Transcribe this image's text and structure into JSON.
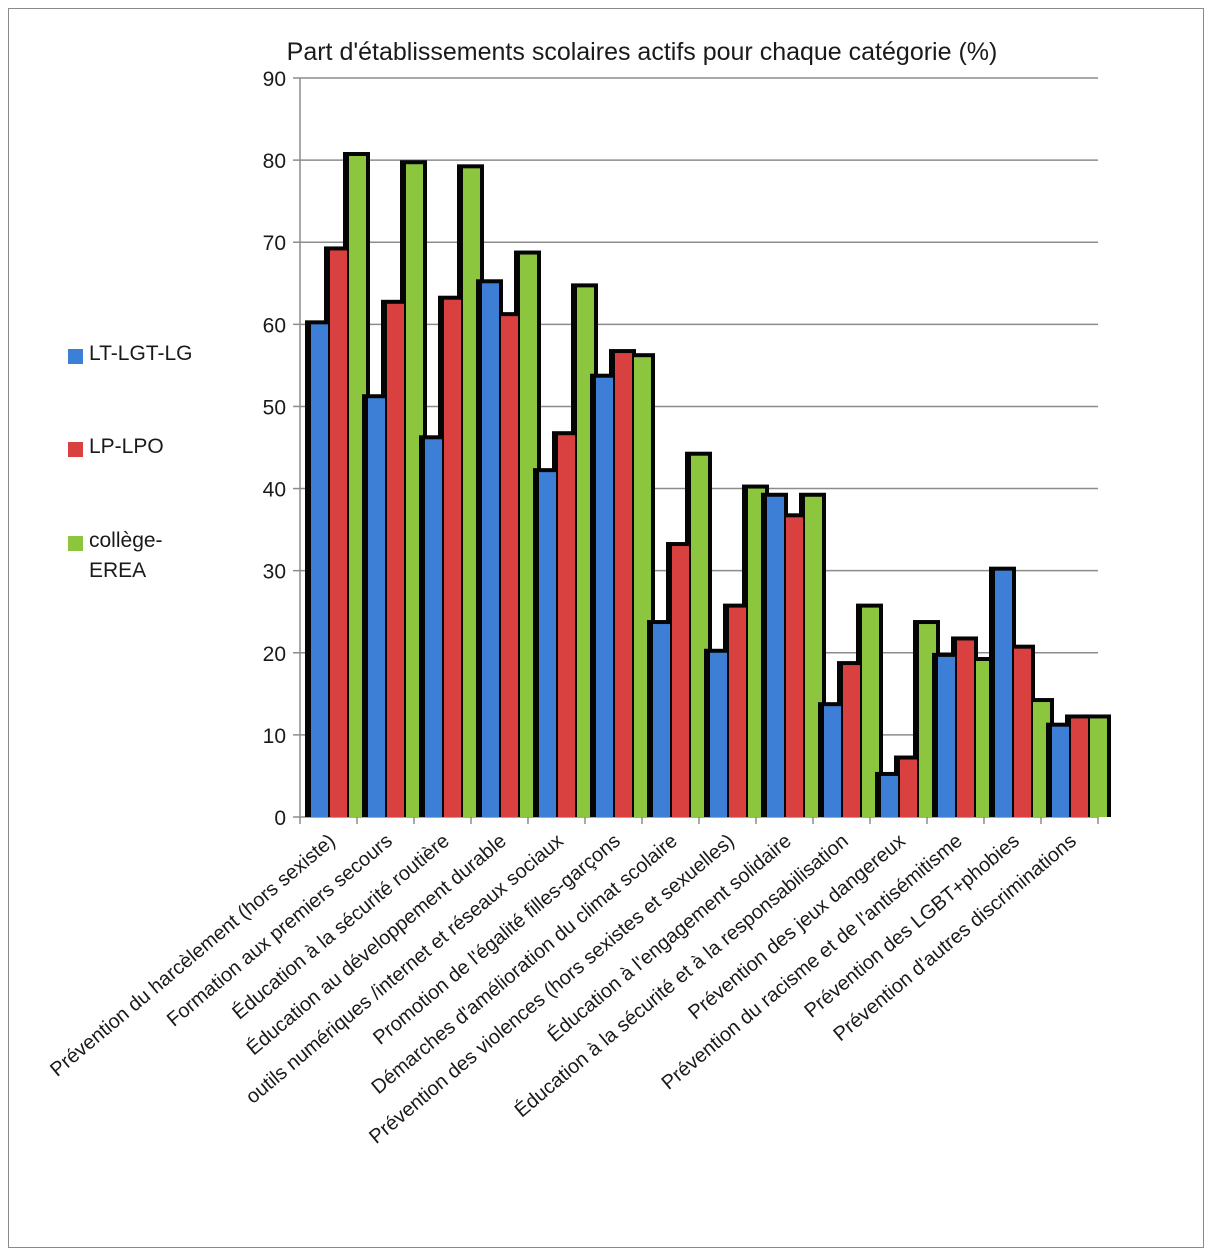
{
  "chart_data": {
    "type": "bar",
    "title": "Part d'établissements scolaires actifs pour chaque catégorie  (%)",
    "xlabel": "",
    "ylabel": "",
    "ylim": [
      0,
      90
    ],
    "yticks": [
      0,
      10,
      20,
      30,
      40,
      50,
      60,
      70,
      80,
      90
    ],
    "grid": true,
    "legend_position": "left",
    "categories": [
      "Prévention du harcèlement (hors sexiste)",
      "Formation aux premiers secours",
      "Éducation à la sécurité routière",
      "Éducation au développement durable",
      "outils numériques /internet et réseaux sociaux",
      "Promotion de l'égalité filles-garçons",
      "Démarches d'amélioration du climat scolaire",
      "Prévention des violences (hors sexistes et sexuelles)",
      "Éducation à l'engagement solidaire",
      "Éducation à la sécurité et à la responsabilisation",
      "Prévention des jeux dangereux",
      "Prévention du racisme et de l'antisémitisme",
      "Prévention des LGBT+phobies",
      "Prévention d'autres discriminations"
    ],
    "series": [
      {
        "name": "LT-LGT-LG",
        "color": "#3d7fd6",
        "values": [
          60,
          51,
          46,
          65,
          42,
          53.5,
          23.5,
          20,
          39,
          13.5,
          5,
          19.5,
          30,
          11
        ]
      },
      {
        "name": "LP-LPO",
        "color": "#d94040",
        "values": [
          69,
          62.5,
          63,
          61,
          46.5,
          56.5,
          33,
          25.5,
          36.5,
          18.5,
          7,
          21.5,
          20.5,
          12
        ]
      },
      {
        "name": "collège-\nEREA",
        "color": "#8cc63e",
        "values": [
          80.5,
          79.5,
          79,
          68.5,
          64.5,
          56,
          44,
          40,
          39,
          25.5,
          23.5,
          19,
          14,
          12
        ]
      }
    ]
  },
  "legend": [
    {
      "label": "LT-LGT-LG",
      "color": "#3d7fd6"
    },
    {
      "label": "LP-LPO",
      "color": "#d94040"
    },
    {
      "label": "collège-\nEREA",
      "color": "#8cc63e"
    }
  ]
}
